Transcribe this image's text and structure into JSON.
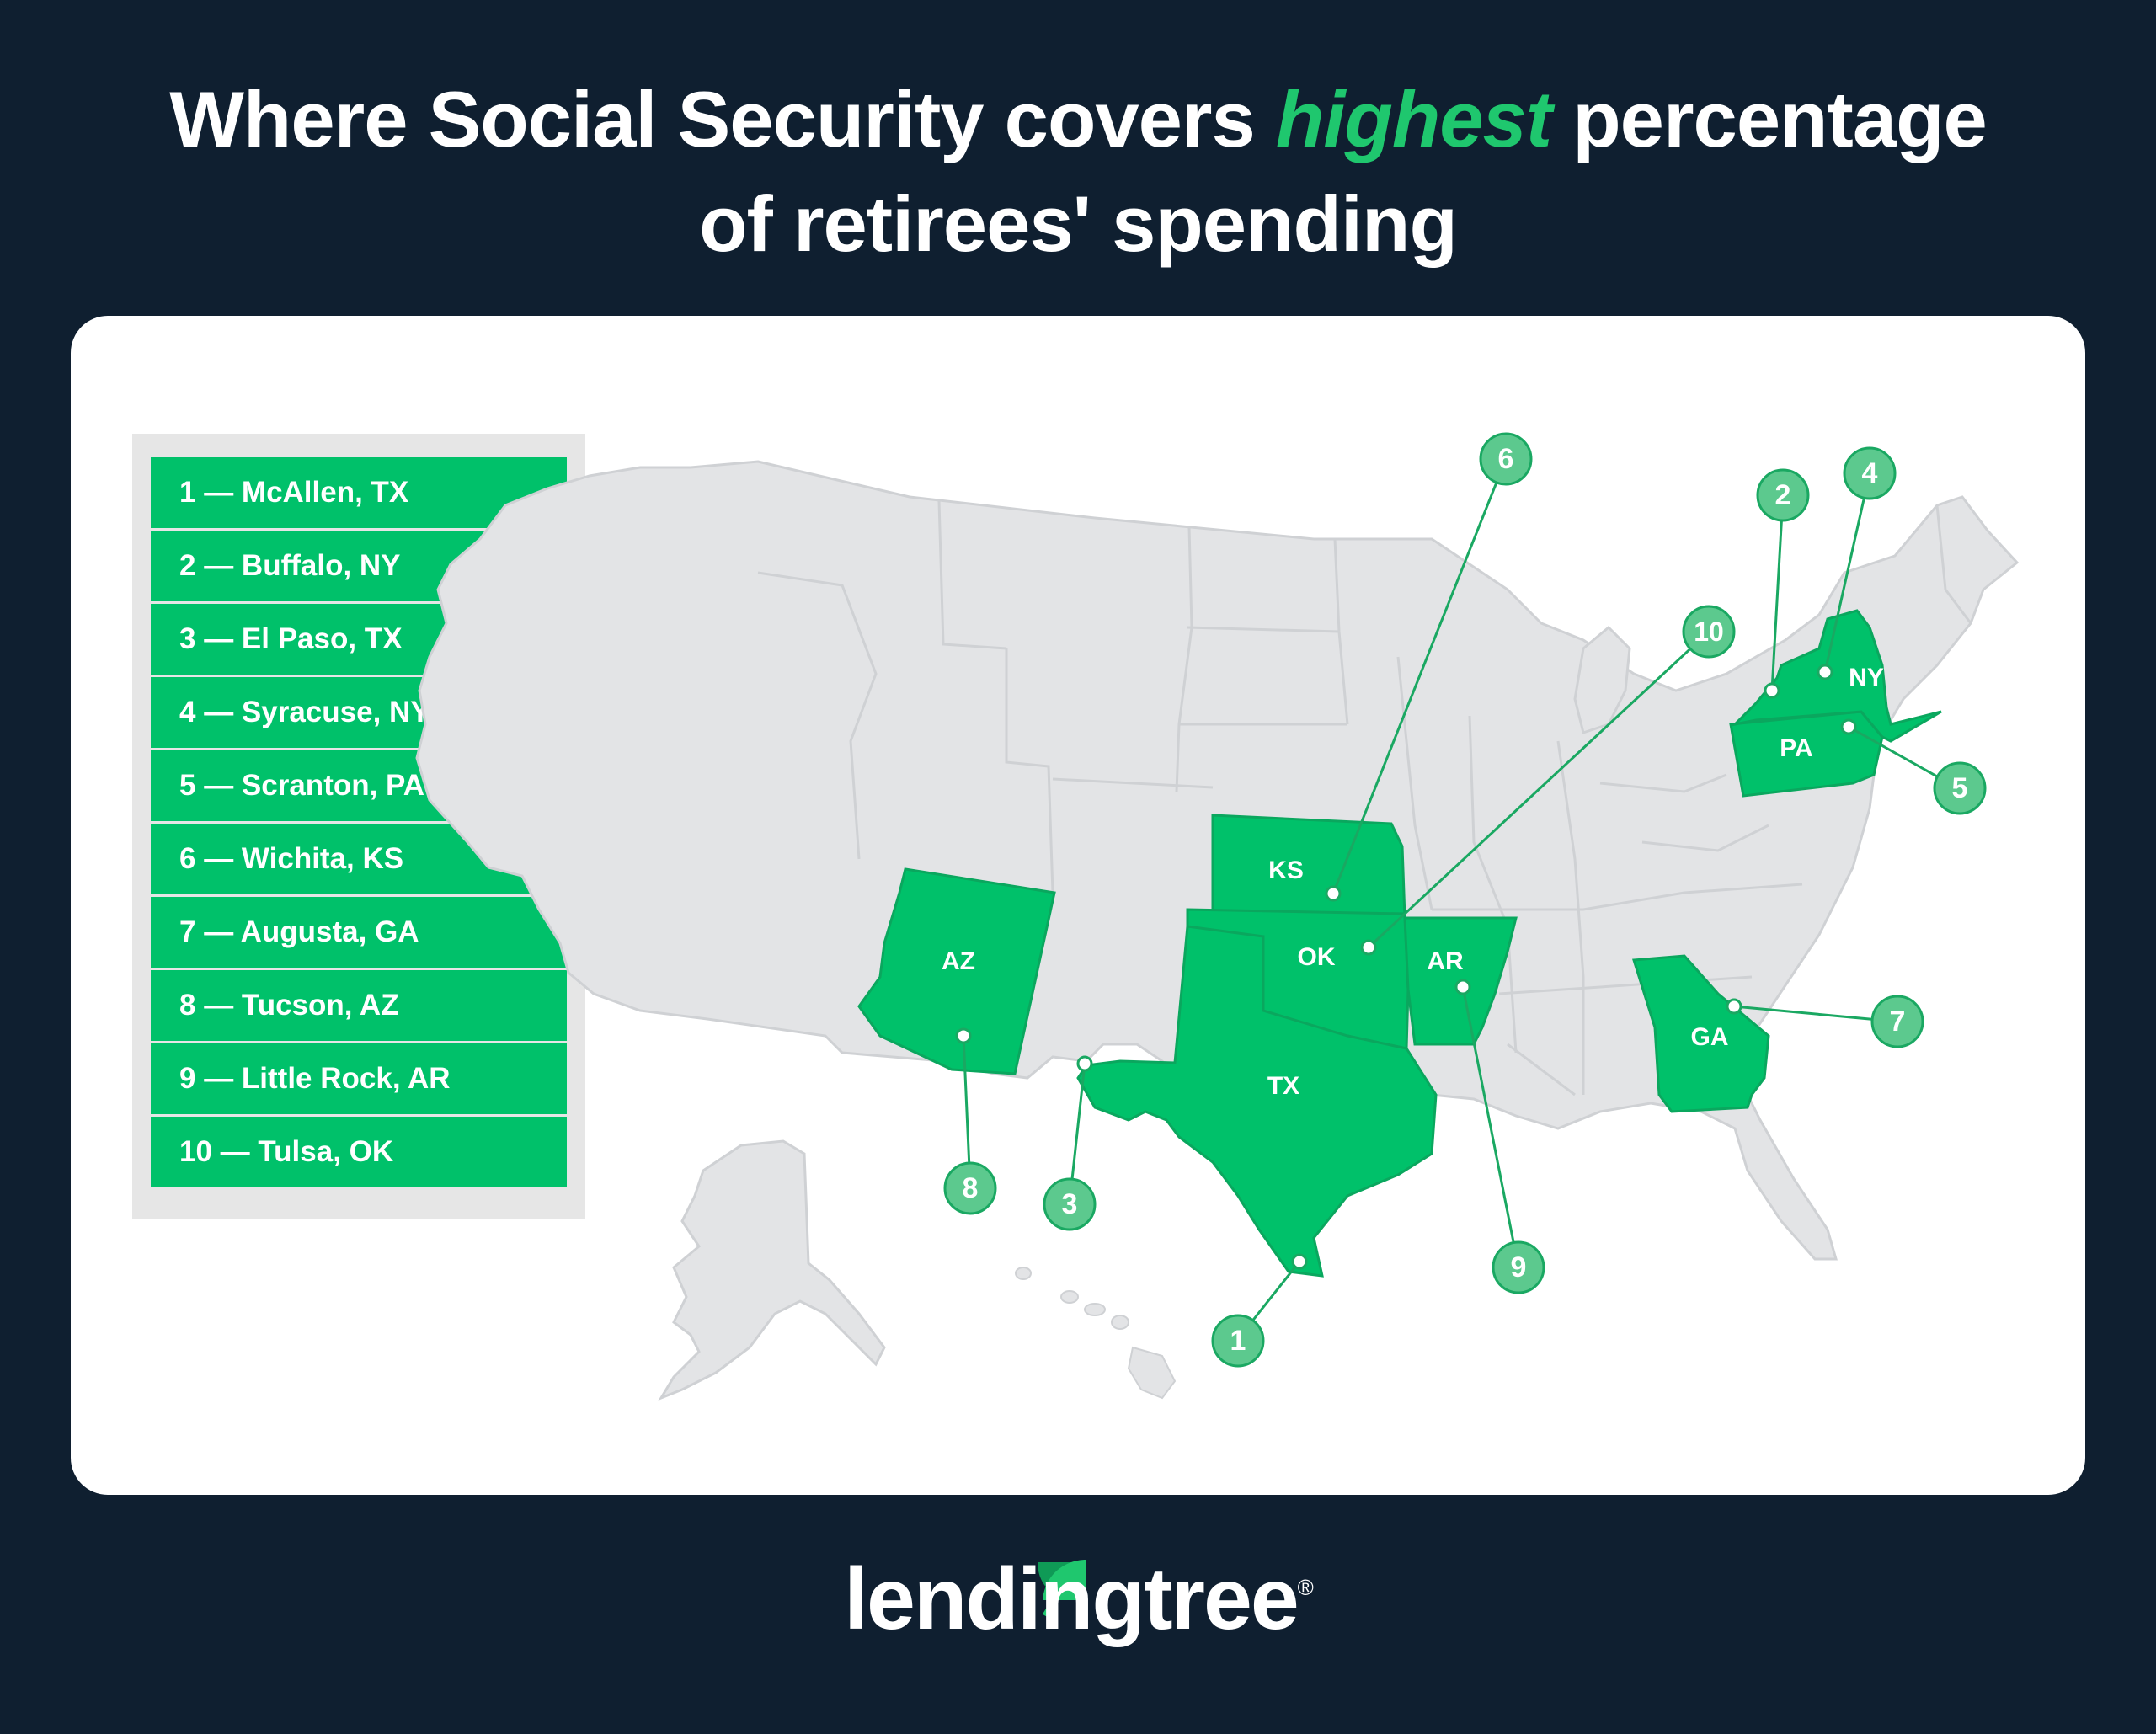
{
  "title": {
    "part1": "Where Social Security covers ",
    "highlight": "highest",
    "part2": " percentage",
    "line2": "of retirees' spending"
  },
  "legend": [
    "1 — McAllen, TX",
    "2 — Buffalo, NY",
    "3 — El Paso, TX",
    "4 — Syracuse, NY",
    "5 — Scranton, PA",
    "6 — Wichita, KS",
    "7 — Augusta, GA",
    "8 — Tucson, AZ",
    "9 — Little Rock, AR",
    "10 — Tulsa, OK"
  ],
  "states": {
    "tx": "TX",
    "az": "AZ",
    "ks": "KS",
    "ok": "OK",
    "ar": "AR",
    "ga": "GA",
    "ny": "NY",
    "pa": "PA"
  },
  "badges": {
    "b1": "1",
    "b2": "2",
    "b3": "3",
    "b4": "4",
    "b5": "5",
    "b6": "6",
    "b7": "7",
    "b8": "8",
    "b9": "9",
    "b10": "10"
  },
  "brand": {
    "name": "lendingtree",
    "reg": "®"
  },
  "colors": {
    "background": "#0f1f30",
    "highlight_state": "#00c16a",
    "other_state": "#e3e4e6",
    "badge": "#5cc98e",
    "title_accent": "#1fc76e"
  }
}
